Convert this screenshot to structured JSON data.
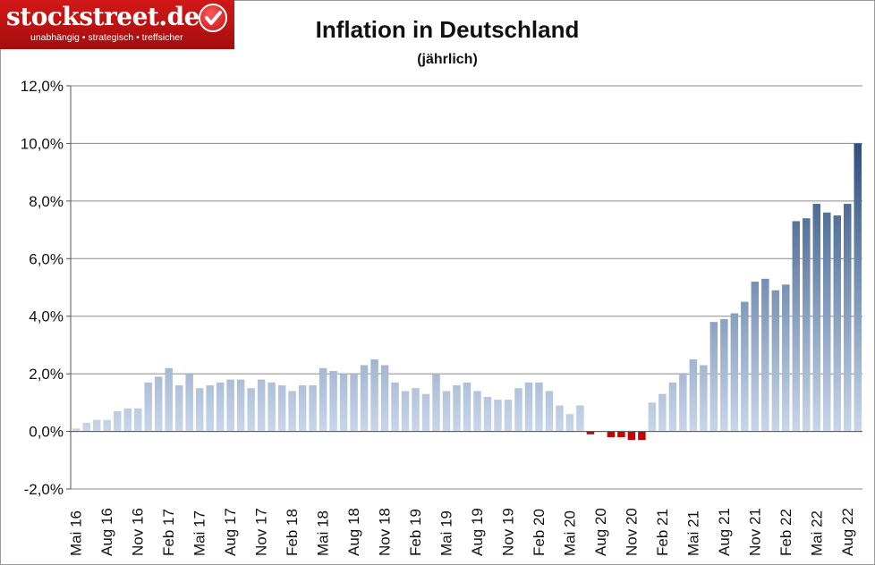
{
  "logo": {
    "name": "stockstreet.de",
    "tagline": "unabhängig • strategisch • treffsicher"
  },
  "chart_data": {
    "type": "bar",
    "title": "Inflation in Deutschland",
    "subtitle": "(jährlich)",
    "xlabel": "",
    "ylabel": "",
    "ylim": [
      -2,
      12
    ],
    "yticks": [
      "-2,0%",
      "0,0%",
      "2,0%",
      "4,0%",
      "6,0%",
      "8,0%",
      "10,0%",
      "12,0%"
    ],
    "grid": true,
    "legend": "none",
    "colors": {
      "positive": "#2d4f7f",
      "positive_light": "#c8d6ea",
      "negative": "#c80000"
    },
    "categories": [
      "Mai 16",
      "Jun 16",
      "Jul 16",
      "Aug 16",
      "Sep 16",
      "Okt 16",
      "Nov 16",
      "Dez 16",
      "Jan 17",
      "Feb 17",
      "Mär 17",
      "Apr 17",
      "Mai 17",
      "Jun 17",
      "Jul 17",
      "Aug 17",
      "Sep 17",
      "Okt 17",
      "Nov 17",
      "Dez 17",
      "Jan 18",
      "Feb 18",
      "Mär 18",
      "Apr 18",
      "Mai 18",
      "Jun 18",
      "Jul 18",
      "Aug 18",
      "Sep 18",
      "Okt 18",
      "Nov 18",
      "Dez 18",
      "Jan 19",
      "Feb 19",
      "Mär 19",
      "Apr 19",
      "Mai 19",
      "Jun 19",
      "Jul 19",
      "Aug 19",
      "Sep 19",
      "Okt 19",
      "Nov 19",
      "Dez 19",
      "Jan 20",
      "Feb 20",
      "Mär 20",
      "Apr 20",
      "Mai 20",
      "Jun 20",
      "Jul 20",
      "Aug 20",
      "Sep 20",
      "Okt 20",
      "Nov 20",
      "Dez 20",
      "Jan 21",
      "Feb 21",
      "Mär 21",
      "Apr 21",
      "Mai 21",
      "Jun 21",
      "Jul 21",
      "Aug 21",
      "Sep 21",
      "Okt 21",
      "Nov 21",
      "Dez 21",
      "Jan 22",
      "Feb 22",
      "Mär 22",
      "Apr 22",
      "Mai 22",
      "Jun 22",
      "Jul 22",
      "Aug 22",
      "Sep 22"
    ],
    "xtick_labels": [
      "Mai 16",
      "Aug 16",
      "Nov 16",
      "Feb 17",
      "Mai 17",
      "Aug 17",
      "Nov 17",
      "Feb 18",
      "Mai 18",
      "Aug 18",
      "Nov 18",
      "Feb 19",
      "Mai 19",
      "Aug 19",
      "Nov 19",
      "Feb 20",
      "Mai 20",
      "Aug 20",
      "Nov 20",
      "Feb 21",
      "Mai 21",
      "Aug 21",
      "Nov 21",
      "Feb 22",
      "Mai 22",
      "Aug 22"
    ],
    "values": [
      0.1,
      0.3,
      0.4,
      0.4,
      0.7,
      0.8,
      0.8,
      1.7,
      1.9,
      2.2,
      1.6,
      2.0,
      1.5,
      1.6,
      1.7,
      1.8,
      1.8,
      1.5,
      1.8,
      1.7,
      1.6,
      1.4,
      1.6,
      1.6,
      2.2,
      2.1,
      2.0,
      2.0,
      2.3,
      2.5,
      2.3,
      1.7,
      1.4,
      1.5,
      1.3,
      2.0,
      1.4,
      1.6,
      1.7,
      1.4,
      1.2,
      1.1,
      1.1,
      1.5,
      1.7,
      1.7,
      1.4,
      0.9,
      0.6,
      0.9,
      -0.1,
      0.0,
      -0.2,
      -0.2,
      -0.3,
      -0.3,
      1.0,
      1.3,
      1.7,
      2.0,
      2.5,
      2.3,
      3.8,
      3.9,
      4.1,
      4.5,
      5.2,
      5.3,
      4.9,
      5.1,
      7.3,
      7.4,
      7.9,
      7.6,
      7.5,
      7.9,
      10.0
    ]
  }
}
